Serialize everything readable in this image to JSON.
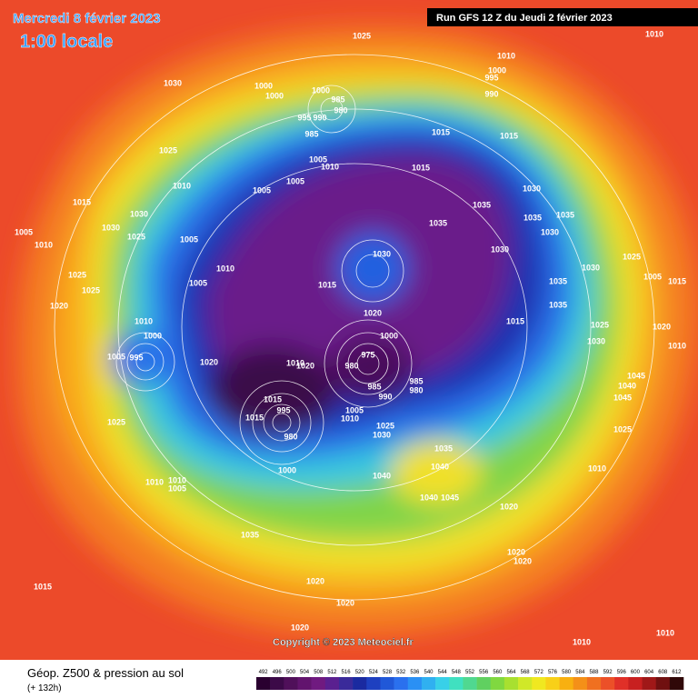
{
  "header": {
    "date": "Mercredi 8 février 2023",
    "time": "1:00 locale",
    "run": "Run GFS 12 Z du Jeudi 2 février 2023"
  },
  "copyright": "Copyright © 2023 Meteociel.fr",
  "footer": {
    "title": "Géop. Z500 & pression au sol",
    "lead": "(+ 132h)"
  },
  "legend": {
    "ticks": [
      492,
      496,
      500,
      504,
      508,
      512,
      516,
      520,
      524,
      528,
      532,
      536,
      540,
      544,
      548,
      552,
      556,
      560,
      564,
      568,
      572,
      576,
      580,
      584,
      588,
      592,
      596,
      600,
      604,
      608,
      612
    ],
    "colors": [
      "#2a0030",
      "#3c0a48",
      "#50105a",
      "#62146e",
      "#701a80",
      "#5a2090",
      "#3a2a9a",
      "#1a2aa0",
      "#1e40c0",
      "#2058d8",
      "#2a70ee",
      "#2a90f4",
      "#30b0f0",
      "#38d0e8",
      "#40e0c0",
      "#50d890",
      "#60d060",
      "#80d840",
      "#a8e030",
      "#d0e828",
      "#f0e820",
      "#f8d018",
      "#f8b010",
      "#f49018",
      "#f07020",
      "#ec5028",
      "#e03028",
      "#c82020",
      "#a01818",
      "#701010",
      "#300808"
    ]
  },
  "isobar_labels": [
    1025,
    1010,
    1030,
    1010,
    1000,
    995,
    990,
    1000,
    1000,
    1000,
    985,
    980,
    995,
    990,
    985,
    1015,
    1015,
    1025,
    1005,
    1010,
    1015,
    1010,
    1005,
    1005,
    1030,
    1035,
    1035,
    1035,
    1015,
    1030,
    1030,
    1025,
    1035,
    1005,
    1005,
    1010,
    1030,
    1030,
    1030,
    1030,
    1025,
    1010,
    1025,
    1005,
    1015,
    1035,
    1005,
    1015,
    1025,
    1020,
    1020,
    1015,
    1035,
    1010,
    1025,
    1020,
    1000,
    1000,
    1030,
    1010,
    975,
    1005,
    995,
    1020,
    1010,
    1020,
    980,
    1045,
    985,
    1040,
    985,
    980,
    990,
    1045,
    1015,
    995,
    1005,
    1015,
    1010,
    1025,
    1025,
    980,
    1030,
    1025,
    1035,
    1040,
    1010,
    1000,
    1040,
    1010,
    1010,
    1005,
    1045,
    1040,
    1020,
    1035,
    1020,
    1020,
    1015,
    1020,
    1020,
    1020,
    1010,
    1010
  ]
}
